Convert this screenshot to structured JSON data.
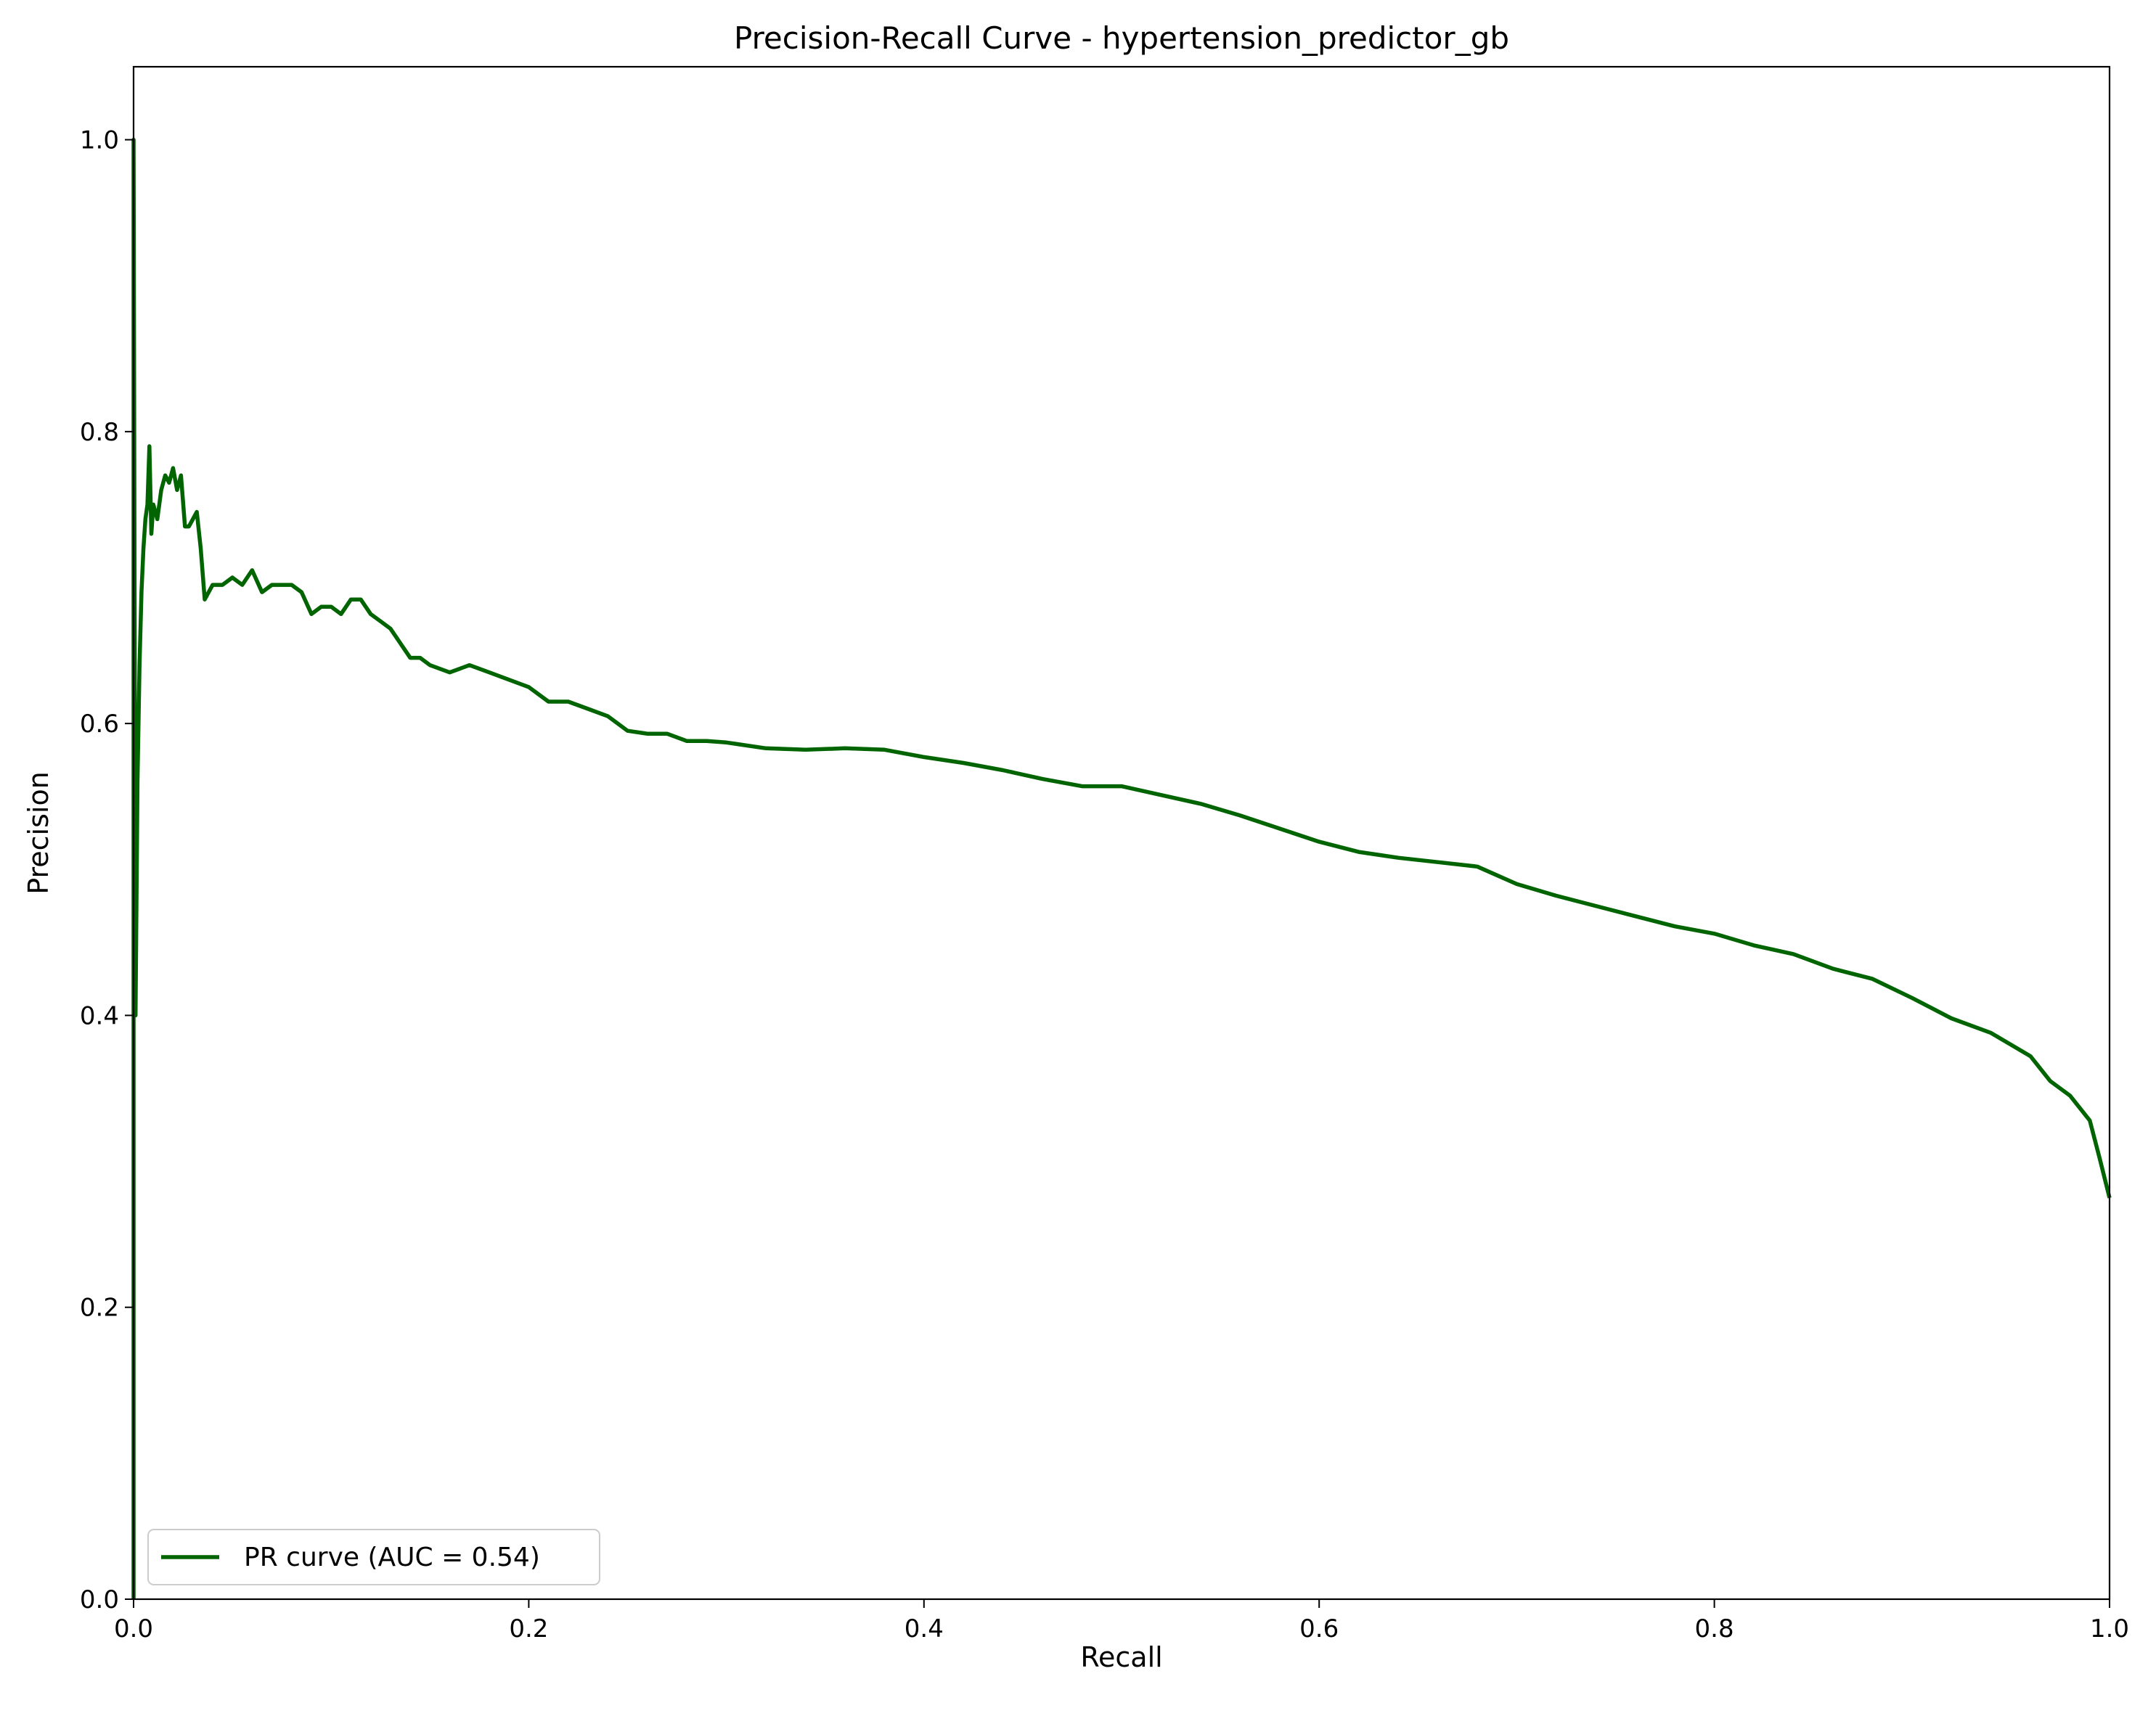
{
  "chart_data": {
    "type": "line",
    "title": "Precision-Recall Curve - hypertension_predictor_gb",
    "xlabel": "Recall",
    "ylabel": "Precision",
    "xlim": [
      0.0,
      1.0
    ],
    "ylim": [
      0.0,
      1.05
    ],
    "x_ticks": [
      "0.0",
      "0.2",
      "0.4",
      "0.6",
      "0.8",
      "1.0"
    ],
    "y_ticks": [
      "0.0",
      "0.2",
      "0.4",
      "0.6",
      "0.8",
      "1.0"
    ],
    "grid": false,
    "legend_position": "bottom-left",
    "series": [
      {
        "name": "PR curve (AUC = 0.54)",
        "color": "#006400",
        "x": [
          0.0,
          0.0,
          0.001,
          0.002,
          0.003,
          0.004,
          0.005,
          0.006,
          0.007,
          0.008,
          0.009,
          0.01,
          0.012,
          0.014,
          0.016,
          0.018,
          0.02,
          0.022,
          0.024,
          0.026,
          0.028,
          0.03,
          0.032,
          0.034,
          0.036,
          0.04,
          0.045,
          0.05,
          0.055,
          0.06,
          0.065,
          0.07,
          0.075,
          0.08,
          0.085,
          0.09,
          0.095,
          0.1,
          0.105,
          0.11,
          0.115,
          0.12,
          0.125,
          0.13,
          0.135,
          0.14,
          0.145,
          0.15,
          0.16,
          0.17,
          0.18,
          0.19,
          0.2,
          0.21,
          0.22,
          0.23,
          0.24,
          0.25,
          0.26,
          0.27,
          0.28,
          0.29,
          0.3,
          0.32,
          0.34,
          0.36,
          0.38,
          0.4,
          0.42,
          0.44,
          0.46,
          0.48,
          0.5,
          0.52,
          0.54,
          0.56,
          0.58,
          0.6,
          0.62,
          0.64,
          0.66,
          0.68,
          0.7,
          0.72,
          0.74,
          0.76,
          0.78,
          0.8,
          0.82,
          0.84,
          0.86,
          0.88,
          0.9,
          0.92,
          0.94,
          0.96,
          0.97,
          0.98,
          0.99,
          0.995,
          1.0
        ],
        "y": [
          0.0,
          1.0,
          0.4,
          0.56,
          0.64,
          0.69,
          0.72,
          0.74,
          0.75,
          0.79,
          0.73,
          0.75,
          0.74,
          0.76,
          0.77,
          0.765,
          0.775,
          0.76,
          0.77,
          0.735,
          0.735,
          0.74,
          0.745,
          0.72,
          0.685,
          0.695,
          0.695,
          0.7,
          0.695,
          0.705,
          0.69,
          0.695,
          0.695,
          0.695,
          0.69,
          0.675,
          0.68,
          0.68,
          0.675,
          0.685,
          0.685,
          0.675,
          0.67,
          0.665,
          0.655,
          0.645,
          0.645,
          0.64,
          0.635,
          0.64,
          0.635,
          0.63,
          0.625,
          0.615,
          0.615,
          0.61,
          0.605,
          0.595,
          0.593,
          0.593,
          0.588,
          0.588,
          0.587,
          0.583,
          0.582,
          0.583,
          0.582,
          0.577,
          0.573,
          0.568,
          0.562,
          0.557,
          0.557,
          0.551,
          0.545,
          0.537,
          0.528,
          0.519,
          0.512,
          0.508,
          0.505,
          0.502,
          0.49,
          0.482,
          0.475,
          0.468,
          0.461,
          0.456,
          0.448,
          0.442,
          0.432,
          0.425,
          0.412,
          0.398,
          0.388,
          0.372,
          0.355,
          0.345,
          0.328,
          0.302,
          0.275
        ]
      }
    ]
  }
}
